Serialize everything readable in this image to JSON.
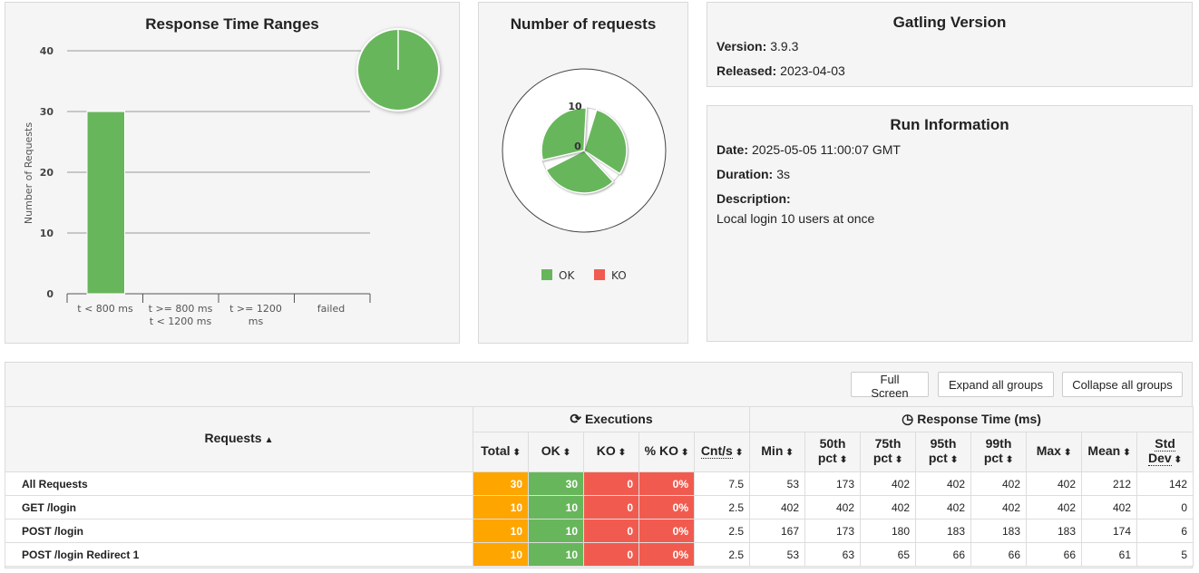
{
  "response_time_ranges": {
    "title": "Response Time Ranges",
    "chart_data": {
      "type": "bar",
      "categories": [
        "t < 800 ms",
        "t >= 800 ms t < 1200 ms",
        "t >= 1200 ms",
        "failed"
      ],
      "values": [
        30,
        0,
        0,
        0
      ],
      "ylabel": "Number of Requests",
      "yticks": [
        "0",
        "10",
        "20",
        "30",
        "40"
      ],
      "ylim": [
        0,
        40
      ],
      "bar_color": "#68b65c"
    },
    "cat1": "t < 800 ms",
    "cat2a": "t >= 800 ms",
    "cat2b": "t < 1200 ms",
    "cat3a": "t >= 1200",
    "cat3b": "ms",
    "cat4": "failed",
    "ylabel": "Number of Requests",
    "tick0": "0",
    "tick10": "10",
    "tick20": "20",
    "tick30": "30",
    "tick40": "40"
  },
  "number_of_requests": {
    "title": "Number of requests",
    "chart_data": {
      "type": "pie",
      "categories": [
        "GET /login",
        "POST /login",
        "POST /login Redirect 1"
      ],
      "series": [
        {
          "name": "OK",
          "values": [
            10,
            10,
            10
          ]
        },
        {
          "name": "KO",
          "values": [
            0,
            0,
            0
          ]
        }
      ],
      "radial_ticks": [
        "0",
        "10"
      ],
      "colors": {
        "OK": "#68b65c",
        "KO": "#f15b4f"
      }
    },
    "tick0": "0",
    "tick10": "10",
    "legend_ok": "OK",
    "legend_ko": "KO"
  },
  "gatling_version": {
    "title": "Gatling Version",
    "version_label": "Version:",
    "version_value": "3.9.3",
    "released_label": "Released:",
    "released_value": "2023-04-03"
  },
  "run_information": {
    "title": "Run Information",
    "date_label": "Date:",
    "date_value": "2025-05-05 11:00:07 GMT",
    "duration_label": "Duration:",
    "duration_value": "3s",
    "description_label": "Description:",
    "description_value": "Local login 10 users at once"
  },
  "toolbar": {
    "full_screen": "Full Screen",
    "expand_all": "Expand all groups",
    "collapse_all": "Collapse all groups"
  },
  "table": {
    "requests_header": "Requests",
    "executions_header": "Executions",
    "response_time_header": "Response Time (ms)",
    "col_total": "Total",
    "col_ok": "OK",
    "col_ko": "KO",
    "col_pct_ko": "% KO",
    "col_cnts": "Cnt/s",
    "col_min": "Min",
    "col_50": "50th",
    "col_75": "75th",
    "col_95": "95th",
    "col_99": "99th",
    "col_pct": "pct",
    "col_max": "Max",
    "col_mean": "Mean",
    "col_std": "Std",
    "col_dev": "Dev",
    "rows": [
      {
        "name": "All Requests",
        "total": "30",
        "ok": "30",
        "ko": "0",
        "pct_ko": "0%",
        "cnts": "7.5",
        "min": "53",
        "p50": "173",
        "p75": "402",
        "p95": "402",
        "p99": "402",
        "max": "402",
        "mean": "212",
        "std": "142"
      },
      {
        "name": "GET /login",
        "total": "10",
        "ok": "10",
        "ko": "0",
        "pct_ko": "0%",
        "cnts": "2.5",
        "min": "402",
        "p50": "402",
        "p75": "402",
        "p95": "402",
        "p99": "402",
        "max": "402",
        "mean": "402",
        "std": "0"
      },
      {
        "name": "POST /login",
        "total": "10",
        "ok": "10",
        "ko": "0",
        "pct_ko": "0%",
        "cnts": "2.5",
        "min": "167",
        "p50": "173",
        "p75": "180",
        "p95": "183",
        "p99": "183",
        "max": "183",
        "mean": "174",
        "std": "6"
      },
      {
        "name": "POST /login Redirect 1",
        "total": "10",
        "ok": "10",
        "ko": "0",
        "pct_ko": "0%",
        "cnts": "2.5",
        "min": "53",
        "p50": "63",
        "p75": "65",
        "p95": "66",
        "p99": "66",
        "max": "66",
        "mean": "61",
        "std": "5"
      }
    ]
  }
}
